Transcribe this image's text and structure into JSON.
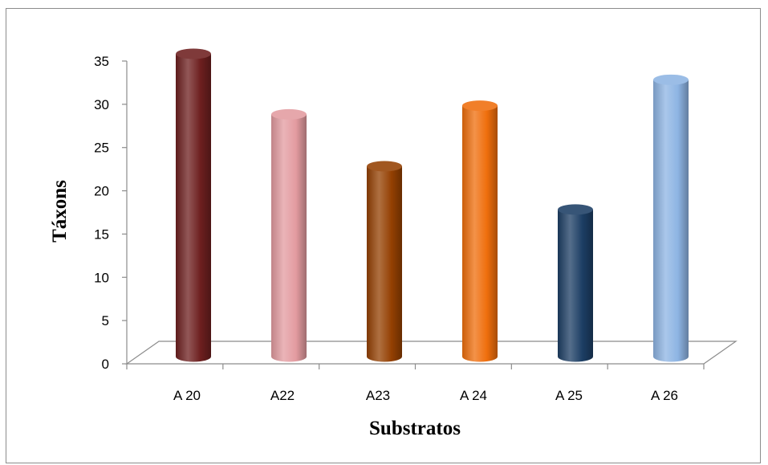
{
  "chart_data": {
    "type": "bar",
    "style": "3d-cylinder",
    "title": "",
    "categories": [
      "A 20",
      "A22",
      "A23",
      "A 24",
      "A 25",
      "A 26"
    ],
    "values": [
      35,
      28,
      22,
      29,
      17,
      32
    ],
    "colors": [
      "#6d1f1f",
      "#e39ba0",
      "#944002",
      "#ef6e0c",
      "#1c3e64",
      "#8db4e3"
    ],
    "xlabel": "Substratos",
    "ylabel": "Táxons",
    "ylim": [
      0,
      35
    ],
    "yticks": [
      "0",
      "5",
      "10",
      "15",
      "20",
      "25",
      "30",
      "35"
    ],
    "grid": false,
    "legend": "none"
  }
}
